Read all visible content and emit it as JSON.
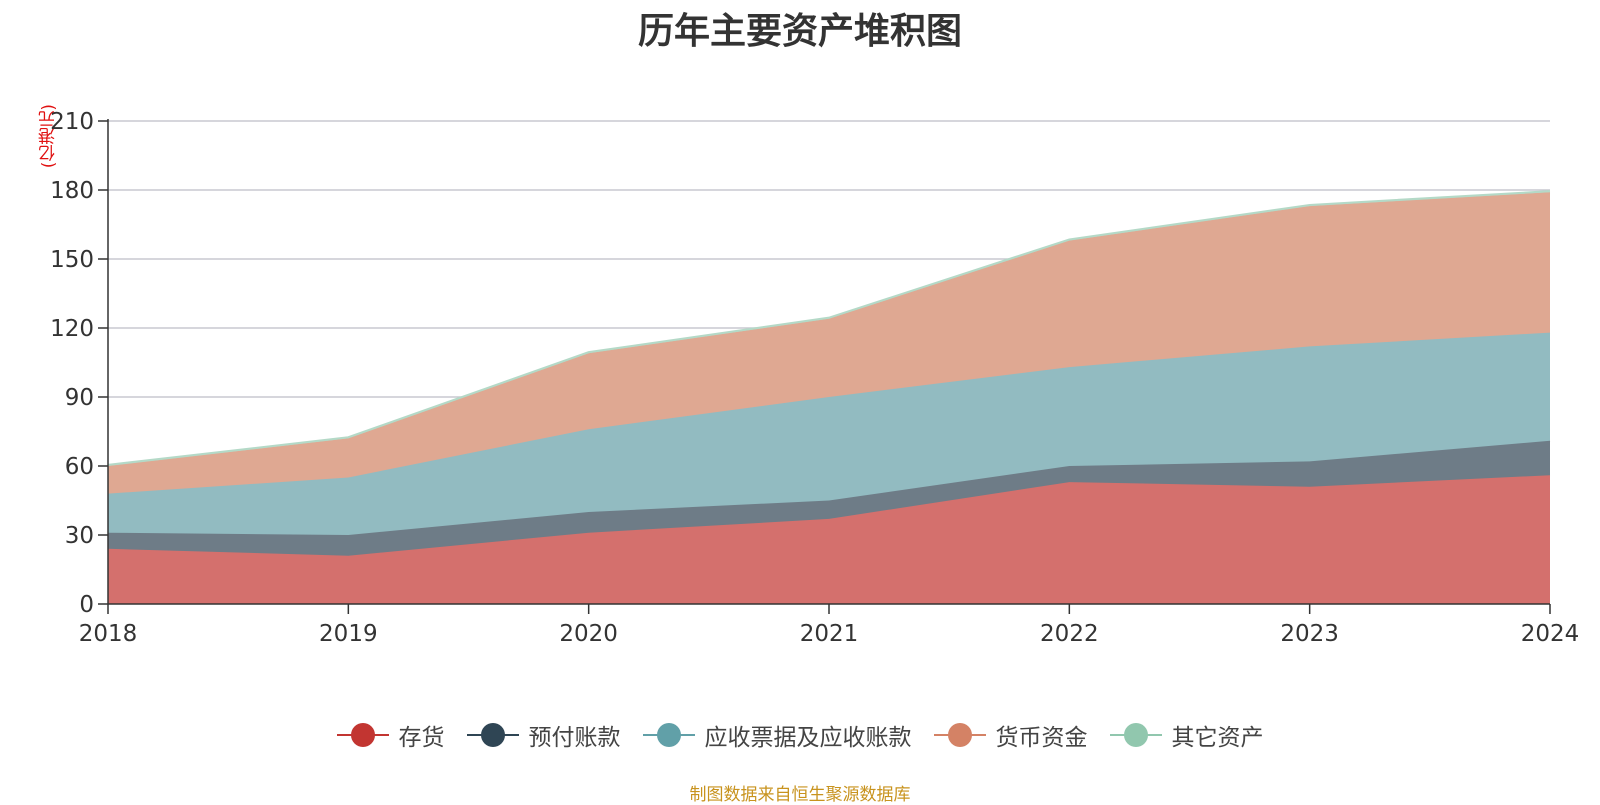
{
  "title": "历年主要资产堆积图",
  "source_note": "制图数据来自恒生聚源数据库",
  "chart_data": {
    "type": "area",
    "stacked": true,
    "title": "历年主要资产堆积图",
    "ylabel": "(亿港元)",
    "xlabel": "",
    "categories": [
      "2018",
      "2019",
      "2020",
      "2021",
      "2022",
      "2023",
      "2024"
    ],
    "ylim": [
      0,
      210
    ],
    "yticks": [
      0,
      30,
      60,
      90,
      120,
      150,
      180,
      210
    ],
    "grid": true,
    "legend_position": "bottom",
    "series": [
      {
        "name": "存货",
        "color": "#c23531",
        "area_color": "#d4706d",
        "values": [
          24,
          21,
          31,
          37,
          53,
          51,
          56
        ]
      },
      {
        "name": "预付账款",
        "color": "#2f4554",
        "area_color": "#6e7c87",
        "values": [
          7,
          9,
          9,
          8,
          7,
          11,
          15
        ]
      },
      {
        "name": "应收票据及应收账款",
        "color": "#61a0a8",
        "area_color": "#92bbc1",
        "values": [
          17,
          25,
          36,
          45,
          43,
          50,
          47
        ]
      },
      {
        "name": "货币资金",
        "color": "#d48265",
        "area_color": "#dfa892",
        "values": [
          12,
          17,
          33,
          34,
          55,
          61,
          61
        ]
      },
      {
        "name": "其它资产",
        "color": "#91c7ae",
        "area_color": "#b4d9c7",
        "values": [
          0.5,
          0.5,
          0.5,
          0.5,
          0.5,
          0.5,
          0.5
        ]
      }
    ]
  }
}
